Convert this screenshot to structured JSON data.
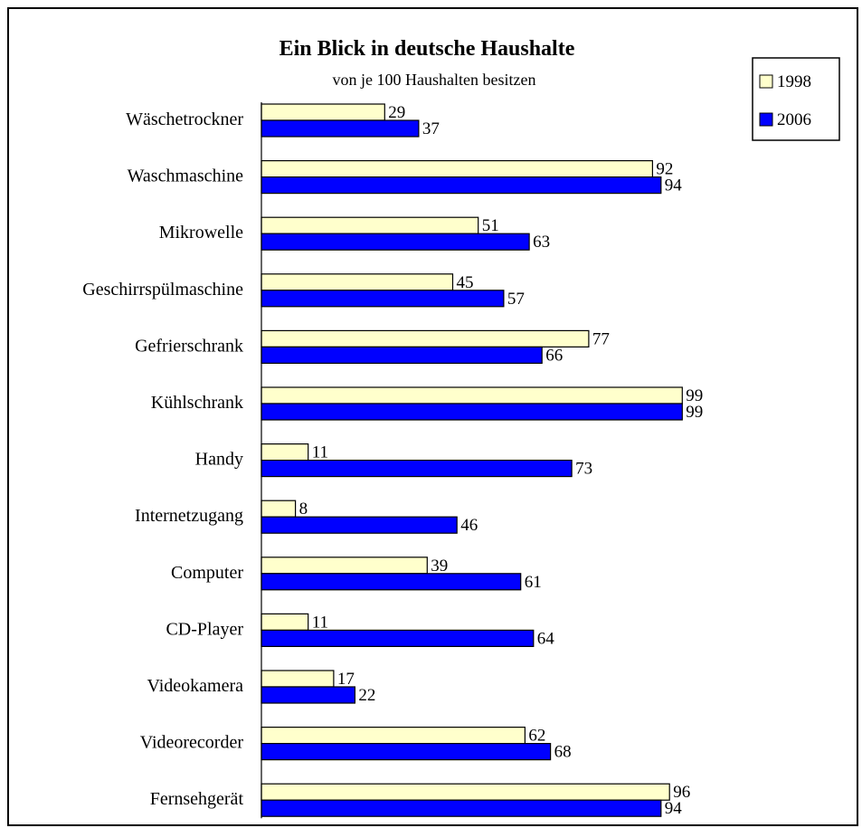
{
  "chart_data": {
    "type": "bar",
    "orientation": "horizontal",
    "title": "Ein Blick in deutsche Haushalte",
    "subtitle": "von je 100 Haushalten besitzen",
    "xlabel": "",
    "ylabel": "",
    "xlim": [
      0,
      100
    ],
    "grid": false,
    "legend_position": "top-right",
    "categories": [
      "Wäschetrockner",
      "Waschmaschine",
      "Mikrowelle",
      "Geschirrspülmaschine",
      "Gefrierschrank",
      "Kühlschrank",
      "Handy",
      "Internetzugang",
      "Computer",
      "CD-Player",
      "Videokamera",
      "Videorecorder",
      "Fernsehgerät"
    ],
    "series": [
      {
        "name": "1998",
        "color": "#FFFFCC",
        "values": [
          29,
          92,
          51,
          45,
          77,
          99,
          11,
          8,
          39,
          11,
          17,
          62,
          96
        ]
      },
      {
        "name": "2006",
        "color": "#0000FF",
        "values": [
          37,
          94,
          63,
          57,
          66,
          99,
          73,
          46,
          61,
          64,
          22,
          68,
          94
        ]
      }
    ]
  }
}
